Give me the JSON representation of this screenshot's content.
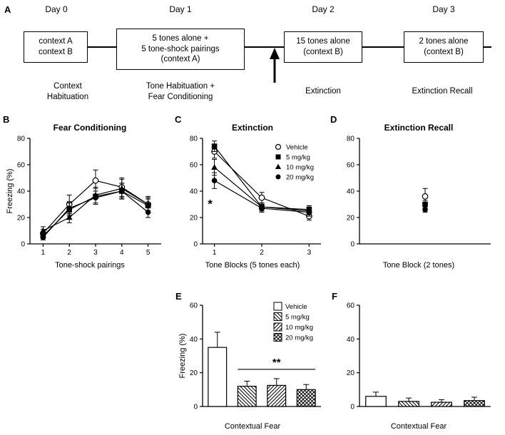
{
  "figure": {
    "background": "#ffffff",
    "ink": "#000000"
  },
  "panel_labels": {
    "a": "A",
    "b": "B",
    "c": "C",
    "d": "D",
    "e": "E",
    "f": "F"
  },
  "panel_a": {
    "days": [
      "Day 0",
      "Day 1",
      "Day 2",
      "Day 3"
    ],
    "boxes": [
      "context A\ncontext B",
      "5 tones alone +\n5 tone-shock pairings\n(context A)",
      "15 tones alone\n(context B)",
      "2 tones alone\n(context B)"
    ],
    "phases": [
      "Context\nHabituation",
      "Tone Habituation +\nFear Conditioning",
      "Extinction",
      "Extinction Recall"
    ],
    "arrow": "up-arrow-at-timeline-between-day1-and-day2"
  },
  "chart_data": [
    {
      "panel": "B",
      "type": "line",
      "title": "Fear Conditioning",
      "xlabel": "Tone-shock pairings",
      "ylabel": "Freezing (%)",
      "ylim": [
        0,
        80
      ],
      "yticks": [
        0,
        20,
        40,
        60,
        80
      ],
      "x": [
        1,
        2,
        3,
        4,
        5
      ],
      "legend": false,
      "series": [
        {
          "name": "Vehicle",
          "marker": "open-circle",
          "values": [
            8,
            30,
            48,
            43,
            30
          ],
          "errors": [
            3,
            7,
            8,
            7,
            6
          ]
        },
        {
          "name": "5 mg/kg",
          "marker": "filled-square",
          "values": [
            6,
            26,
            36,
            40,
            29
          ],
          "errors": [
            2,
            5,
            6,
            6,
            5
          ]
        },
        {
          "name": "10 mg/kg",
          "marker": "filled-triangle",
          "values": [
            10,
            20,
            37,
            42,
            30
          ],
          "errors": [
            3,
            4,
            6,
            7,
            5
          ]
        },
        {
          "name": "20 mg/kg",
          "marker": "filled-circle",
          "values": [
            5,
            27,
            35,
            40,
            24
          ],
          "errors": [
            2,
            5,
            5,
            6,
            4
          ]
        }
      ]
    },
    {
      "panel": "C",
      "type": "line",
      "title": "Extinction",
      "xlabel": "Tone Blocks (5 tones each)",
      "ylabel": "",
      "ylim": [
        0,
        80
      ],
      "yticks": [
        0,
        20,
        40,
        60,
        80
      ],
      "x": [
        1,
        2,
        3
      ],
      "legend": true,
      "series": [
        {
          "name": "Vehicle",
          "marker": "open-circle",
          "values": [
            70,
            35,
            21
          ],
          "errors": [
            5,
            4,
            3
          ]
        },
        {
          "name": "5 mg/kg",
          "marker": "filled-square",
          "values": [
            74,
            28,
            26
          ],
          "errors": [
            4,
            3,
            3
          ]
        },
        {
          "name": "10 mg/kg",
          "marker": "filled-triangle",
          "values": [
            58,
            28,
            25
          ],
          "errors": [
            6,
            3,
            3
          ]
        },
        {
          "name": "20 mg/kg",
          "marker": "filled-circle",
          "values": [
            48,
            27,
            24
          ],
          "errors": [
            6,
            3,
            3
          ]
        }
      ],
      "annotations": [
        {
          "text": "*",
          "xi": 0,
          "value": 29,
          "dx": -6,
          "dy": 3
        }
      ]
    },
    {
      "panel": "D",
      "type": "line",
      "title": "Extinction Recall",
      "xlabel": "Tone Block (2 tones)",
      "ylabel": "",
      "ylim": [
        0,
        80
      ],
      "yticks": [
        0,
        20,
        40,
        60,
        80
      ],
      "x": [
        1
      ],
      "xticklabels": false,
      "legend": false,
      "series": [
        {
          "name": "Vehicle",
          "marker": "open-circle",
          "values": [
            36
          ],
          "errors": [
            6
          ]
        },
        {
          "name": "5 mg/kg",
          "marker": "filled-square",
          "values": [
            30
          ],
          "errors": [
            3
          ]
        },
        {
          "name": "20 mg/kg",
          "marker": "filled-circle",
          "values": [
            26
          ],
          "errors": [
            2
          ]
        }
      ]
    },
    {
      "panel": "E",
      "type": "bar",
      "title": "",
      "xlabel": "Contextual Fear",
      "ylabel": "Freezing (%)",
      "ylim": [
        0,
        60
      ],
      "yticks": [
        0,
        20,
        40,
        60
      ],
      "categories": [
        "Vehicle",
        "5 mg/kg",
        "10 mg/kg",
        "20 mg/kg"
      ],
      "patterns": [
        "solid-white",
        "hatch-down",
        "hatch-up",
        "hatch-cross"
      ],
      "values": [
        35,
        12,
        12.5,
        10
      ],
      "errors": [
        9,
        3,
        4,
        3
      ],
      "legend": true,
      "annotations": [
        {
          "text": "**",
          "type": "bar-bracket",
          "from": 1,
          "to": 3,
          "value": 22
        }
      ]
    },
    {
      "panel": "F",
      "type": "bar",
      "title": "",
      "xlabel": "Contextual Fear",
      "ylabel": "",
      "ylim": [
        0,
        60
      ],
      "yticks": [
        0,
        20,
        40,
        60
      ],
      "categories": [
        "Vehicle",
        "5 mg/kg",
        "10 mg/kg",
        "20 mg/kg"
      ],
      "patterns": [
        "solid-white",
        "hatch-down",
        "hatch-up",
        "hatch-cross"
      ],
      "values": [
        6,
        3,
        2.5,
        3.5
      ],
      "errors": [
        2.5,
        2,
        1.5,
        2
      ],
      "legend": false
    }
  ]
}
